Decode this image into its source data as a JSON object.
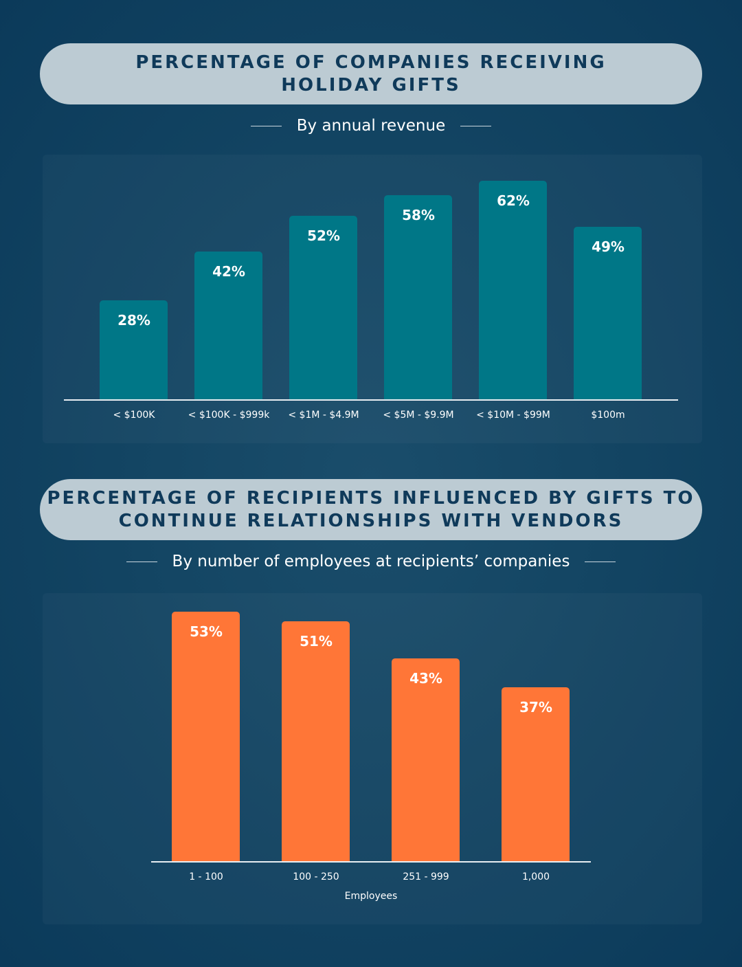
{
  "chart_data": [
    {
      "type": "bar",
      "title": "PERCENTAGE OF COMPANIES RECEIVING\nHOLIDAY GIFTS",
      "subtitle": "By annual revenue",
      "categories": [
        "< $100K",
        "< $100K - $999k",
        "< $1M - $4.9M",
        "< $5M - $9.9M",
        "< $10M - $99M",
        "$100m"
      ],
      "values": [
        28,
        42,
        52,
        58,
        62,
        49
      ],
      "value_labels": [
        "28%",
        "42%",
        "52%",
        "58%",
        "62%",
        "49%"
      ],
      "xlabel": "",
      "ylabel": "",
      "ylim": [
        0,
        62
      ],
      "grid": false,
      "color": "#007787"
    },
    {
      "type": "bar",
      "title": "PERCENTAGE OF RECIPIENTS INFLUENCED BY GIFTS TO\nCONTINUE RELATIONSHIPS WITH VENDORS",
      "subtitle": "By number of employees at recipients’ companies",
      "categories": [
        "1 - 100",
        "100 - 250",
        "251 - 999",
        "1,000"
      ],
      "values": [
        53,
        51,
        43,
        37
      ],
      "value_labels": [
        "53%",
        "51%",
        "43%",
        "37%"
      ],
      "xlabel": "Employees",
      "ylabel": "",
      "ylim": [
        0,
        53
      ],
      "grid": false,
      "color": "#ff7637"
    }
  ]
}
